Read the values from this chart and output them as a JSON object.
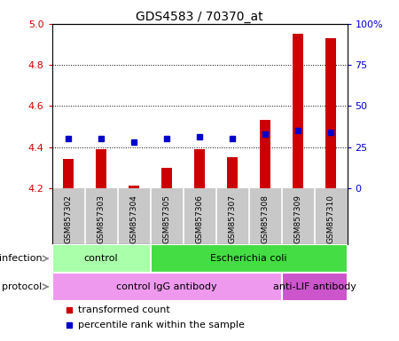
{
  "title": "GDS4583 / 70370_at",
  "samples": [
    "GSM857302",
    "GSM857303",
    "GSM857304",
    "GSM857305",
    "GSM857306",
    "GSM857307",
    "GSM857308",
    "GSM857309",
    "GSM857310"
  ],
  "red_values": [
    4.34,
    4.39,
    4.21,
    4.3,
    4.39,
    4.35,
    4.53,
    4.95,
    4.93
  ],
  "blue_values": [
    30,
    30,
    28,
    30,
    31,
    30,
    33,
    35,
    34
  ],
  "ylim_left": [
    4.2,
    5.0
  ],
  "ylim_right": [
    0,
    100
  ],
  "yticks_left": [
    4.2,
    4.4,
    4.6,
    4.8,
    5.0
  ],
  "yticks_right": [
    0,
    25,
    50,
    75,
    100
  ],
  "ytick_labels_right": [
    "0",
    "25",
    "50",
    "75",
    "100%"
  ],
  "grid_lines": [
    4.4,
    4.6,
    4.8
  ],
  "infection_groups": [
    {
      "label": "control",
      "start": 0,
      "end": 3,
      "color": "#aaffaa"
    },
    {
      "label": "Escherichia coli",
      "start": 3,
      "end": 9,
      "color": "#44dd44"
    }
  ],
  "protocol_groups": [
    {
      "label": "control IgG antibody",
      "start": 0,
      "end": 7,
      "color": "#ee99ee"
    },
    {
      "label": "anti-LIF antibody",
      "start": 7,
      "end": 9,
      "color": "#cc55cc"
    }
  ],
  "legend_red_label": "transformed count",
  "legend_blue_label": "percentile rank within the sample",
  "red_color": "#cc0000",
  "blue_color": "#0000cc",
  "bar_bg_color": "#c8c8c8",
  "infection_label": "infection",
  "protocol_label": "protocol",
  "bar_width": 0.3
}
